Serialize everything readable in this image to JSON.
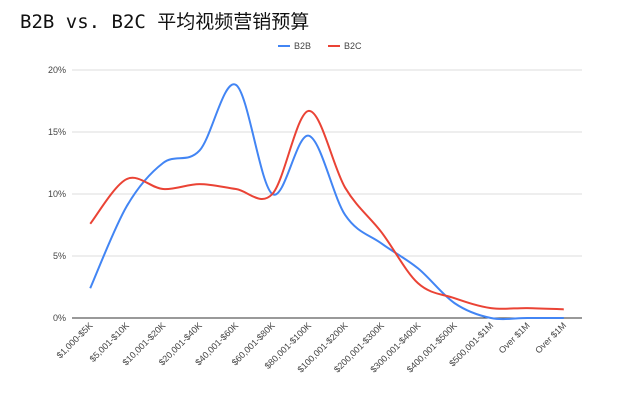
{
  "chart_data": {
    "type": "line",
    "title": "B2B vs. B2C 平均视频营销预算",
    "categories": [
      "$1,000-$5K",
      "$5,001-$10K",
      "$10,001-$20K",
      "$20,001-$40K",
      "$40,001-$60K",
      "$60,001-$80K",
      "$80,001-$100K",
      "$100,001-$200K",
      "$200,001-$300K",
      "$300,001-$400K",
      "$400,001-$500K",
      "$500,001-$1M",
      "Over $1M",
      "Over $1M"
    ],
    "series": [
      {
        "name": "B2B",
        "color": "#4285f4",
        "values": [
          2.4,
          9.0,
          12.5,
          13.5,
          18.8,
          10.0,
          14.7,
          8.3,
          6.0,
          4.0,
          1.2,
          0,
          0,
          0
        ]
      },
      {
        "name": "B2C",
        "color": "#ea4335",
        "values": [
          7.6,
          11.2,
          10.4,
          10.8,
          10.4,
          10.0,
          16.7,
          10.5,
          6.9,
          2.8,
          1.6,
          0.8,
          0.8,
          0.7
        ]
      }
    ],
    "ylim": [
      0,
      20
    ],
    "yticks": [
      {
        "value": 0,
        "label": "0%"
      },
      {
        "value": 5,
        "label": "5%"
      },
      {
        "value": 10,
        "label": "10%"
      },
      {
        "value": 15,
        "label": "15%"
      },
      {
        "value": 20,
        "label": "20%"
      }
    ],
    "grid": true,
    "legend": "top"
  }
}
